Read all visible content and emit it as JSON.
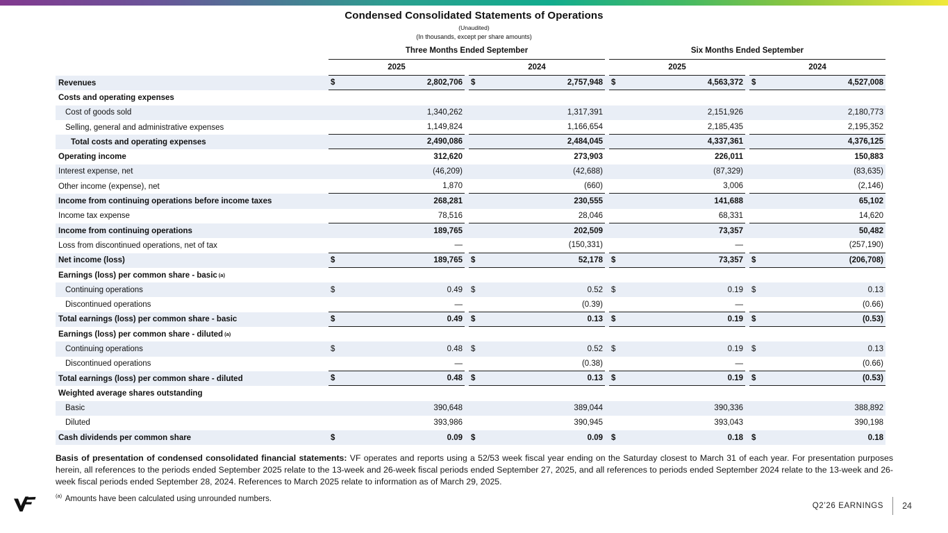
{
  "slide": {
    "title": "Condensed Consolidated Statements of Operations",
    "subtitle1": "(Unaudited)",
    "subtitle2": "(In thousands, except per share amounts)"
  },
  "table": {
    "dollar_symbol": "$",
    "col_groups": [
      {
        "label": "Three Months Ended September"
      },
      {
        "label": "Six Months Ended September"
      }
    ],
    "col_years": [
      "2025",
      "2024",
      "2025",
      "2024"
    ],
    "rows": [
      {
        "label": "Revenues",
        "indent": 0,
        "bold": true,
        "dollar": true,
        "values": [
          "2,802,706",
          "2,757,948",
          "4,563,372",
          "4,527,008"
        ],
        "border_bottom": true
      },
      {
        "label": "Costs and operating expenses",
        "indent": 0,
        "bold": true,
        "values": [
          "",
          "",
          "",
          ""
        ]
      },
      {
        "label": "Cost of goods sold",
        "indent": 1,
        "bold": false,
        "values": [
          "1,340,262",
          "1,317,391",
          "2,151,926",
          "2,180,773"
        ]
      },
      {
        "label": "Selling, general and administrative expenses",
        "indent": 1,
        "bold": false,
        "values": [
          "1,149,824",
          "1,166,654",
          "2,185,435",
          "2,195,352"
        ],
        "border_bottom": true
      },
      {
        "label": "Total costs and operating expenses",
        "indent": 2,
        "bold": true,
        "values": [
          "2,490,086",
          "2,484,045",
          "4,337,361",
          "4,376,125"
        ],
        "border_bottom": true
      },
      {
        "label": "Operating income",
        "indent": 0,
        "bold": true,
        "values": [
          "312,620",
          "273,903",
          "226,011",
          "150,883"
        ]
      },
      {
        "label": "Interest expense, net",
        "indent": 0,
        "bold": false,
        "values": [
          "(46,209)",
          "(42,688)",
          "(87,329)",
          "(83,635)"
        ]
      },
      {
        "label": "Other income (expense), net",
        "indent": 0,
        "bold": false,
        "values": [
          "1,870",
          "(660)",
          "3,006",
          "(2,146)"
        ],
        "border_bottom": true
      },
      {
        "label": "Income from continuing operations before income taxes",
        "indent": 0,
        "bold": true,
        "values": [
          "268,281",
          "230,555",
          "141,688",
          "65,102"
        ]
      },
      {
        "label": "Income tax expense",
        "indent": 0,
        "bold": false,
        "values": [
          "78,516",
          "28,046",
          "68,331",
          "14,620"
        ],
        "border_bottom": true
      },
      {
        "label": "Income from continuing operations",
        "indent": 0,
        "bold": true,
        "values": [
          "189,765",
          "202,509",
          "73,357",
          "50,482"
        ]
      },
      {
        "label": "Loss from discontinued operations, net of tax",
        "indent": 0,
        "bold": false,
        "values": [
          "—",
          "(150,331)",
          "—",
          "(257,190)"
        ],
        "border_bottom": true
      },
      {
        "label": "Net income (loss)",
        "indent": 0,
        "bold": true,
        "dollar": true,
        "values": [
          "189,765",
          "52,178",
          "73,357",
          "(206,708)"
        ],
        "border_bottom": true
      },
      {
        "label": "Earnings (loss) per common share - basic",
        "sup": "(a)",
        "indent": 0,
        "bold": true,
        "values": [
          "",
          "",
          "",
          ""
        ]
      },
      {
        "label": "Continuing operations",
        "indent": 1,
        "bold": false,
        "dollar": true,
        "values": [
          "0.49",
          "0.52",
          "0.19",
          "0.13"
        ]
      },
      {
        "label": "Discontinued operations",
        "indent": 1,
        "bold": false,
        "values": [
          "—",
          "(0.39)",
          "—",
          "(0.66)"
        ],
        "border_bottom": true
      },
      {
        "label": "Total earnings (loss) per common share - basic",
        "indent": 0,
        "bold": true,
        "dollar": true,
        "values": [
          "0.49",
          "0.13",
          "0.19",
          "(0.53)"
        ],
        "border_bottom": true
      },
      {
        "label": "Earnings (loss) per common share - diluted",
        "sup": "(a)",
        "indent": 0,
        "bold": true,
        "values": [
          "",
          "",
          "",
          ""
        ]
      },
      {
        "label": "Continuing operations",
        "indent": 1,
        "bold": false,
        "dollar": true,
        "values": [
          "0.48",
          "0.52",
          "0.19",
          "0.13"
        ]
      },
      {
        "label": "Discontinued operations",
        "indent": 1,
        "bold": false,
        "values": [
          "—",
          "(0.38)",
          "—",
          "(0.66)"
        ],
        "border_bottom": true
      },
      {
        "label": "Total earnings (loss) per common share - diluted",
        "indent": 0,
        "bold": true,
        "dollar": true,
        "values": [
          "0.48",
          "0.13",
          "0.19",
          "(0.53)"
        ],
        "border_bottom": true
      },
      {
        "label": "Weighted average shares outstanding",
        "indent": 0,
        "bold": true,
        "values": [
          "",
          "",
          "",
          ""
        ]
      },
      {
        "label": "Basic",
        "indent": 1,
        "bold": false,
        "values": [
          "390,648",
          "389,044",
          "390,336",
          "388,892"
        ]
      },
      {
        "label": "Diluted",
        "indent": 1,
        "bold": false,
        "values": [
          "393,986",
          "390,945",
          "393,043",
          "390,198"
        ]
      },
      {
        "label": "Cash dividends per common share",
        "indent": 0,
        "bold": true,
        "dollar": true,
        "values": [
          "0.09",
          "0.09",
          "0.18",
          "0.18"
        ]
      }
    ]
  },
  "footer": {
    "basis_bold": "Basis of presentation of condensed consolidated financial statements:",
    "basis_text": " VF operates and reports using a 52/53 week fiscal year ending on the Saturday closest to March 31 of each year. For presentation purposes herein, all references to the periods ended September 2025 relate to the 13-week and 26-week fiscal periods ended September 27, 2025, and all references to periods ended September 2024 relate to the 13-week and 26-week fiscal periods ended September 28, 2024. References to March 2025 relate to information as of March 29, 2025.",
    "footnote_marker": "(a)",
    "footnote_text": " Amounts have been calculated using unrounded numbers.",
    "earnings_label": "Q2’26 EARNINGS",
    "page_number": "24"
  },
  "colors": {
    "row_stripe": "#e9eef6",
    "rule": "#1c1c1c",
    "gradient": [
      "#82398f",
      "#2aa08f",
      "#8cc63f",
      "#f2e93a"
    ]
  }
}
